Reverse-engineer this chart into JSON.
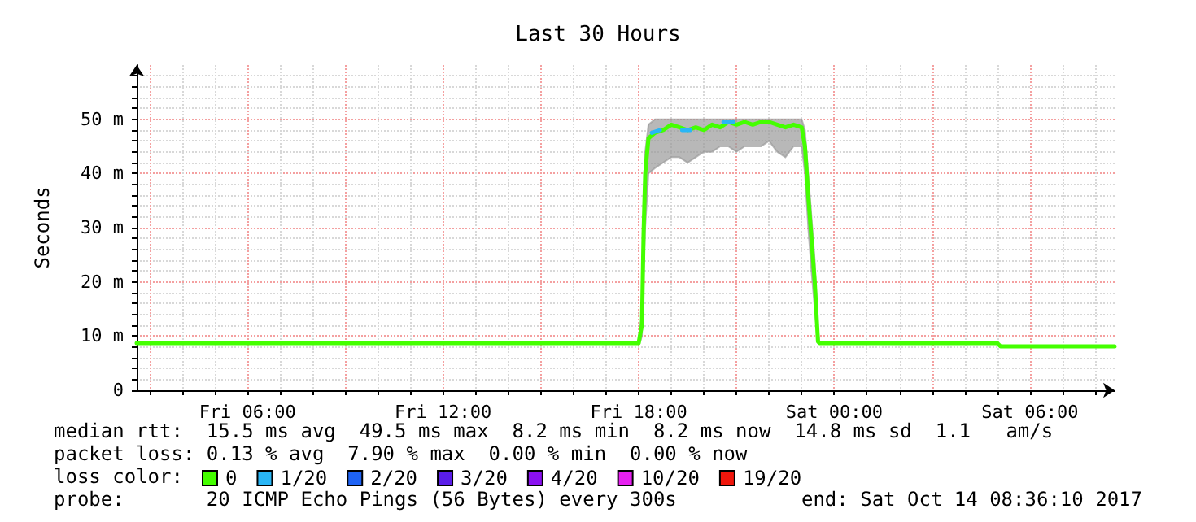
{
  "chart_data": {
    "type": "line",
    "title": "Last 30 Hours",
    "ylabel": "Seconds",
    "xlim": [
      "2017-10-13T02:36",
      "2017-10-14T08:36"
    ],
    "xticks": [
      {
        "value": "2017-10-13T03:00",
        "label": null
      },
      {
        "value": "2017-10-13T04:00",
        "label": null
      },
      {
        "value": "2017-10-13T05:00",
        "label": null
      },
      {
        "value": "2017-10-13T06:00",
        "label": "Fri 06:00"
      },
      {
        "value": "2017-10-13T07:00",
        "label": null
      },
      {
        "value": "2017-10-13T08:00",
        "label": null
      },
      {
        "value": "2017-10-13T09:00",
        "label": null
      },
      {
        "value": "2017-10-13T10:00",
        "label": null
      },
      {
        "value": "2017-10-13T11:00",
        "label": null
      },
      {
        "value": "2017-10-13T12:00",
        "label": "Fri 12:00"
      },
      {
        "value": "2017-10-13T13:00",
        "label": null
      },
      {
        "value": "2017-10-13T14:00",
        "label": null
      },
      {
        "value": "2017-10-13T15:00",
        "label": null
      },
      {
        "value": "2017-10-13T16:00",
        "label": null
      },
      {
        "value": "2017-10-13T17:00",
        "label": null
      },
      {
        "value": "2017-10-13T18:00",
        "label": "Fri 18:00"
      },
      {
        "value": "2017-10-13T19:00",
        "label": null
      },
      {
        "value": "2017-10-13T20:00",
        "label": null
      },
      {
        "value": "2017-10-13T21:00",
        "label": null
      },
      {
        "value": "2017-10-13T22:00",
        "label": null
      },
      {
        "value": "2017-10-13T23:00",
        "label": null
      },
      {
        "value": "2017-10-14T00:00",
        "label": "Sat 00:00"
      },
      {
        "value": "2017-10-14T01:00",
        "label": null
      },
      {
        "value": "2017-10-14T02:00",
        "label": null
      },
      {
        "value": "2017-10-14T03:00",
        "label": null
      },
      {
        "value": "2017-10-14T04:00",
        "label": null
      },
      {
        "value": "2017-10-14T05:00",
        "label": null
      },
      {
        "value": "2017-10-14T06:00",
        "label": "Sat 06:00"
      },
      {
        "value": "2017-10-14T07:00",
        "label": null
      },
      {
        "value": "2017-10-14T08:00",
        "label": null
      }
    ],
    "ylim": [
      0,
      60
    ],
    "yticks": [
      {
        "value": 0,
        "label": "0"
      },
      {
        "value": 2,
        "label": null
      },
      {
        "value": 4,
        "label": null
      },
      {
        "value": 6,
        "label": null
      },
      {
        "value": 8,
        "label": null
      },
      {
        "value": 10,
        "label": "10 m"
      },
      {
        "value": 12,
        "label": null
      },
      {
        "value": 14,
        "label": null
      },
      {
        "value": 16,
        "label": null
      },
      {
        "value": 18,
        "label": null
      },
      {
        "value": 20,
        "label": "20 m"
      },
      {
        "value": 22,
        "label": null
      },
      {
        "value": 24,
        "label": null
      },
      {
        "value": 26,
        "label": null
      },
      {
        "value": 28,
        "label": null
      },
      {
        "value": 30,
        "label": "30 m"
      },
      {
        "value": 32,
        "label": null
      },
      {
        "value": 34,
        "label": null
      },
      {
        "value": 36,
        "label": null
      },
      {
        "value": 38,
        "label": null
      },
      {
        "value": 40,
        "label": "40 m"
      },
      {
        "value": 42,
        "label": null
      },
      {
        "value": 44,
        "label": null
      },
      {
        "value": 46,
        "label": null
      },
      {
        "value": 48,
        "label": null
      },
      {
        "value": 50,
        "label": "50 m"
      },
      {
        "value": 52,
        "label": null
      },
      {
        "value": 54,
        "label": null
      },
      {
        "value": 56,
        "label": null
      },
      {
        "value": 58,
        "label": null
      }
    ],
    "grid": true,
    "legend": "bottom",
    "marker": "none",
    "line_style": "solid",
    "series": [
      {
        "name": "0",
        "color": "#44ff00",
        "x": [
          "2017-10-13T02:36",
          "2017-10-13T18:00",
          "2017-10-13T18:03",
          "2017-10-13T18:06",
          "2017-10-13T18:09",
          "2017-10-13T18:12",
          "2017-10-13T18:18",
          "2017-10-13T18:30",
          "2017-10-13T18:45",
          "2017-10-13T19:00",
          "2017-10-13T19:15",
          "2017-10-13T19:30",
          "2017-10-13T19:45",
          "2017-10-13T20:00",
          "2017-10-13T20:15",
          "2017-10-13T20:30",
          "2017-10-13T20:45",
          "2017-10-13T21:00",
          "2017-10-13T21:15",
          "2017-10-13T21:30",
          "2017-10-13T21:45",
          "2017-10-13T22:00",
          "2017-10-13T22:15",
          "2017-10-13T22:30",
          "2017-10-13T22:45",
          "2017-10-13T23:00",
          "2017-10-13T23:06",
          "2017-10-13T23:12",
          "2017-10-13T23:18",
          "2017-10-13T23:24",
          "2017-10-13T23:30",
          "2017-10-13T23:33",
          "2017-10-14T05:00",
          "2017-10-14T05:06",
          "2017-10-14T08:36"
        ],
        "values": [
          8.7,
          8.7,
          10.5,
          12,
          29,
          40,
          46.5,
          47.5,
          48,
          49,
          48.5,
          48,
          48.5,
          48,
          49,
          48.5,
          49.5,
          49,
          49.5,
          49,
          49.5,
          49.5,
          49,
          48.5,
          49,
          48.5,
          45,
          36,
          28,
          20,
          9,
          8.7,
          8.7,
          8.1,
          8.1
        ],
        "lower": [
          8.7,
          8.7,
          9,
          10,
          22,
          30,
          40,
          41,
          42,
          43,
          43,
          42,
          43,
          44,
          44,
          45,
          45,
          44,
          45,
          45,
          45,
          46,
          44,
          43,
          45,
          45,
          40,
          30,
          22,
          15,
          8.7,
          8.7,
          8.7,
          8.1,
          8.1
        ],
        "upper": [
          8.7,
          8.7,
          12,
          14,
          32,
          44,
          49,
          50,
          50,
          50,
          50,
          50,
          50,
          50,
          50,
          50,
          50,
          50,
          50,
          50,
          50,
          50,
          50,
          50,
          50,
          50,
          48,
          40,
          32,
          24,
          11,
          8.7,
          8.7,
          8.1,
          8.1
        ]
      },
      {
        "name": "1/20",
        "color": "#29b6f6",
        "x": [
          "2017-10-13T18:24",
          "2017-10-13T18:39",
          "2017-10-13T18:45",
          "2017-10-13T19:20",
          "2017-10-13T19:35",
          "2017-10-13T19:40",
          "2017-10-13T20:36",
          "2017-10-13T20:54"
        ],
        "values": [
          47.5,
          48,
          null,
          48,
          48,
          null,
          49.5,
          49.5
        ]
      },
      {
        "name": "2/20",
        "color": "#1e63f5"
      },
      {
        "name": "3/20",
        "color": "#5a1de8"
      },
      {
        "name": "4/20",
        "color": "#8a10f0"
      },
      {
        "name": "10/20",
        "color": "#e620f0"
      },
      {
        "name": "19/20",
        "color": "#f0160c"
      }
    ],
    "annotations": [
      "median rtt:  15.5 ms avg  49.5 ms max  8.2 ms min  8.2 ms now  14.8 ms sd  1.1   am/s",
      "packet loss: 0.13 % avg  7.90 % max  0.00 % min  0.00 % now",
      "loss color:",
      "probe:       20 ICMP Echo Pings (56 Bytes) every 300s",
      "end: Sat Oct 14 08:36:10 2017"
    ]
  }
}
